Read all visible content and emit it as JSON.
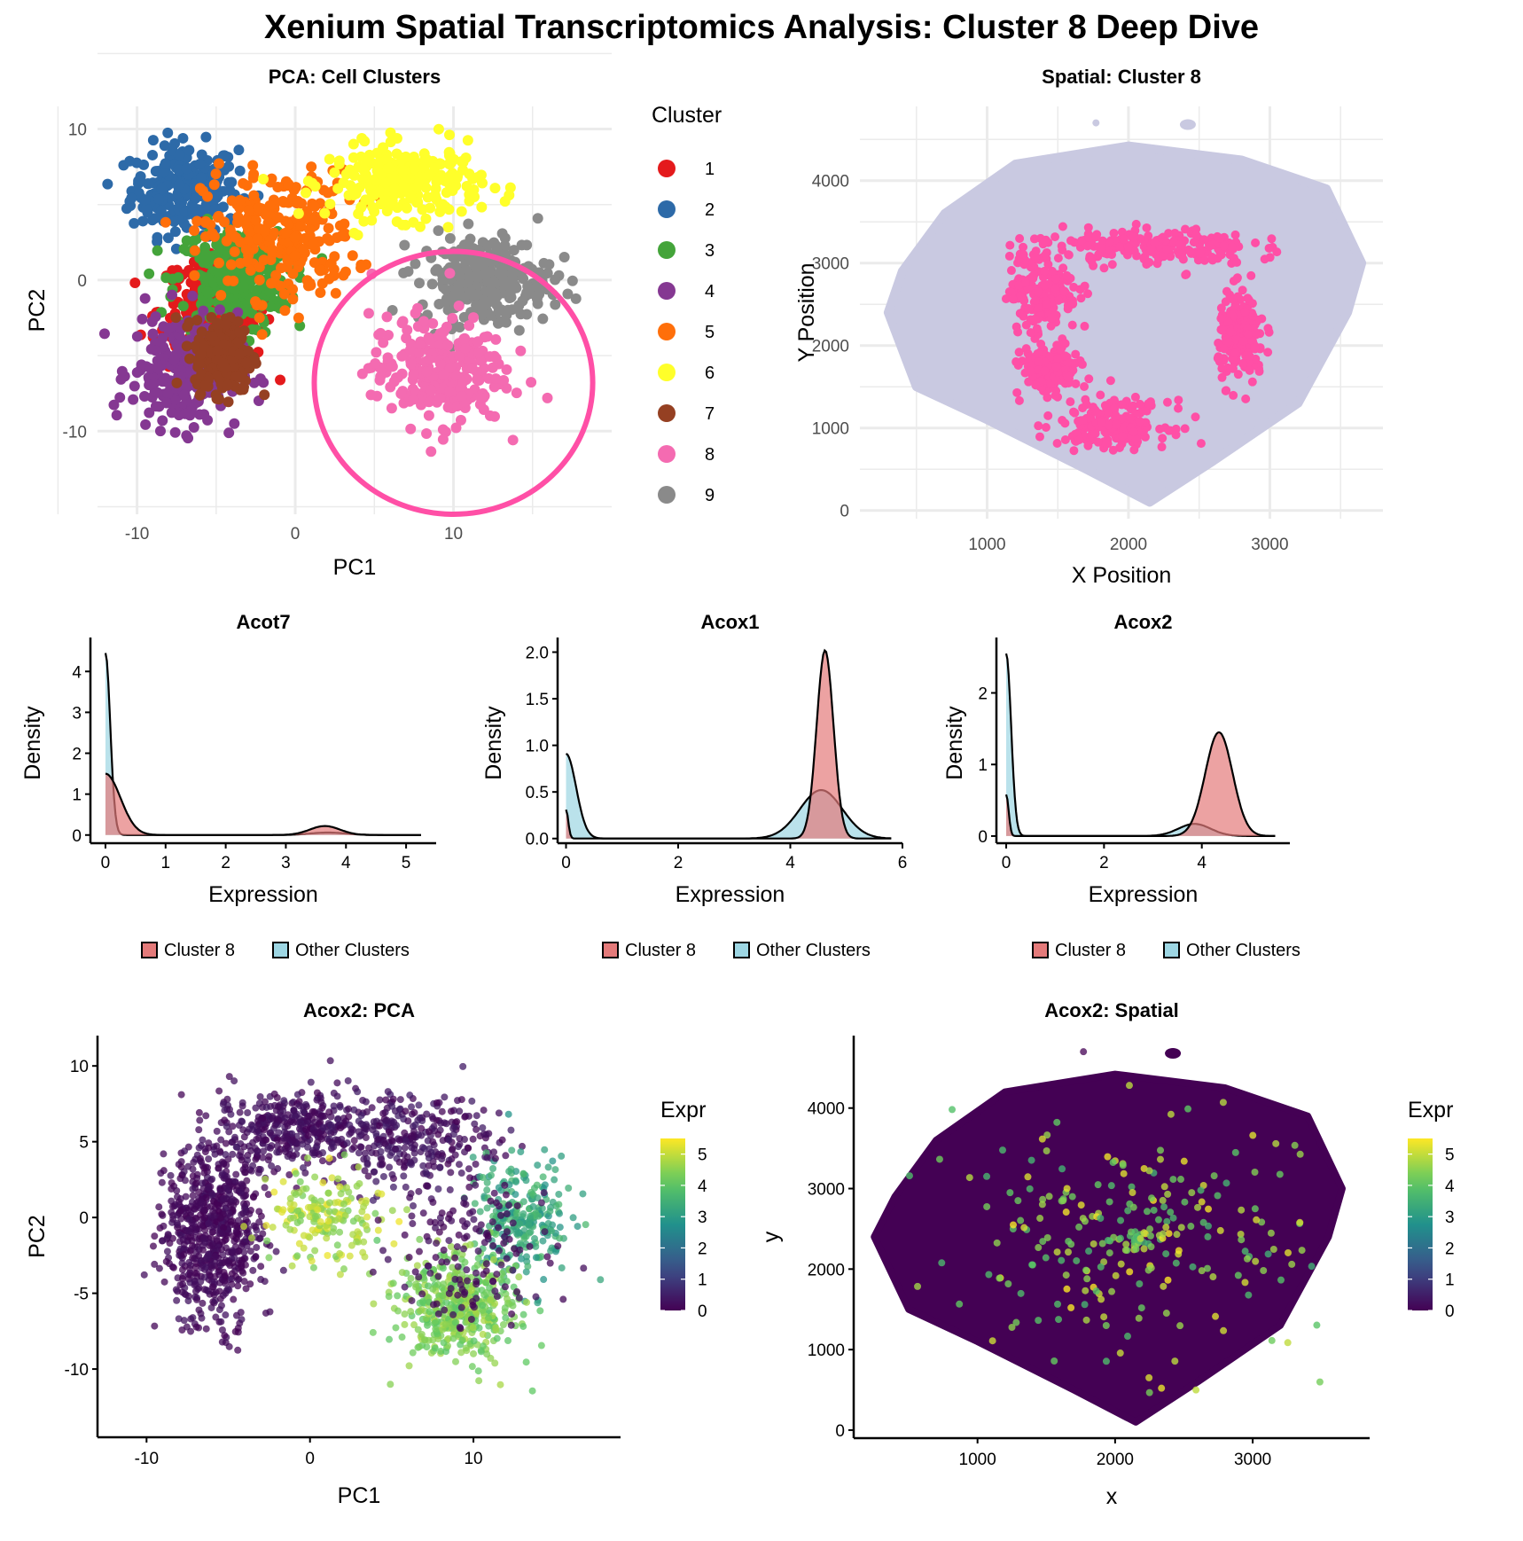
{
  "title": "Xenium Spatial Transcriptomics Analysis: Cluster 8 Deep Dive",
  "chart_data": [
    {
      "id": "pca-clusters",
      "type": "scatter",
      "title": "PCA: Cell Clusters",
      "xlabel": "PC1",
      "ylabel": "PC2",
      "xlim": [
        -12.5,
        20
      ],
      "ylim": [
        -15.5,
        11.5
      ],
      "xticks": [
        -10,
        0,
        10
      ],
      "yticks": [
        -10,
        0,
        10
      ],
      "grid": true,
      "legend": {
        "title": "Cluster",
        "position": "right",
        "entries": [
          {
            "label": "1",
            "color": "#e41a1c"
          },
          {
            "label": "2",
            "color": "#2d6aa8"
          },
          {
            "label": "3",
            "color": "#44a43a"
          },
          {
            "label": "4",
            "color": "#853892"
          },
          {
            "label": "5",
            "color": "#ff6f0a"
          },
          {
            "label": "6",
            "color": "#ffff2a"
          },
          {
            "label": "7",
            "color": "#954022"
          },
          {
            "label": "8",
            "color": "#f46bb1"
          },
          {
            "label": "9",
            "color": "#8a8a8a"
          }
        ]
      },
      "clusters": [
        {
          "label": "2",
          "center": [
            -7,
            6
          ],
          "spread": [
            2.8,
            2.5
          ]
        },
        {
          "label": "1",
          "center": [
            -5,
            -2
          ],
          "spread": [
            3,
            3
          ]
        },
        {
          "label": "3",
          "center": [
            -4,
            0
          ],
          "spread": [
            3,
            3
          ]
        },
        {
          "label": "5",
          "center": [
            -1,
            3
          ],
          "spread": [
            4,
            3.5
          ]
        },
        {
          "label": "6",
          "center": [
            7,
            6.5
          ],
          "spread": [
            4,
            2
          ]
        },
        {
          "label": "4",
          "center": [
            -7,
            -6
          ],
          "spread": [
            2.8,
            3.2
          ]
        },
        {
          "label": "7",
          "center": [
            -4.5,
            -5
          ],
          "spread": [
            1.5,
            2
          ]
        },
        {
          "label": "9",
          "center": [
            12,
            0
          ],
          "spread": [
            3.5,
            2.5
          ]
        },
        {
          "label": "8",
          "center": [
            9,
            -6
          ],
          "spread": [
            3.5,
            3
          ]
        }
      ],
      "annotation": {
        "type": "ellipse",
        "center": [
          10,
          -6.8
        ],
        "radii": [
          8.8,
          8.7
        ],
        "color": "#ff4fa6"
      }
    },
    {
      "id": "spatial-cluster8",
      "type": "scatter",
      "title": "Spatial: Cluster 8",
      "xlabel": "X Position",
      "ylabel": "Y Position",
      "xlim": [
        100,
        3800
      ],
      "ylim": [
        -100,
        4900
      ],
      "xticks": [
        1000,
        2000,
        3000
      ],
      "yticks": [
        0,
        1000,
        2000,
        3000,
        4000
      ],
      "grid": true,
      "background_color": "#c9c9e1",
      "highlight_color": "#ff4fa6",
      "highlight_regions": [
        {
          "center": [
            1400,
            2700
          ],
          "spread": [
            220,
            500
          ]
        },
        {
          "center": [
            2200,
            3200
          ],
          "spread": [
            600,
            200
          ]
        },
        {
          "center": [
            2800,
            2100
          ],
          "spread": [
            150,
            500
          ]
        },
        {
          "center": [
            1900,
            1050
          ],
          "spread": [
            350,
            250
          ]
        },
        {
          "center": [
            1450,
            1700
          ],
          "spread": [
            180,
            250
          ]
        }
      ]
    },
    {
      "id": "density-acot7",
      "type": "area",
      "title": "Acot7",
      "xlabel": "Expression",
      "ylabel": "Density",
      "xlim": [
        -0.25,
        5.5
      ],
      "ylim": [
        -0.2,
        4.7
      ],
      "xticks": [
        0,
        1,
        2,
        3,
        4,
        5
      ],
      "yticks": [
        0,
        1,
        2,
        3,
        4
      ],
      "xmax": 5.25,
      "legend": {
        "position": "bottom",
        "entries": [
          "Cluster 8",
          "Other Clusters"
        ]
      },
      "series": [
        {
          "name": "Cluster 8",
          "color": "#e47a7a",
          "components": [
            [
              0.0,
              0.25,
              1.5
            ],
            [
              3.65,
              0.25,
              0.22
            ]
          ]
        },
        {
          "name": "Other Clusters",
          "color": "#9dd6e3",
          "components": [
            [
              0.0,
              0.08,
              4.45
            ],
            [
              3.7,
              0.3,
              0.06
            ]
          ]
        }
      ]
    },
    {
      "id": "density-acox1",
      "type": "area",
      "title": "Acox1",
      "xlabel": "Expression",
      "ylabel": "Density",
      "xlim": [
        -0.15,
        6.0
      ],
      "ylim": [
        -0.05,
        2.1
      ],
      "xticks": [
        0,
        2,
        4,
        6
      ],
      "yticks": [
        "0.0",
        "0.5",
        "1.0",
        "1.5",
        "2.0"
      ],
      "xmax": 5.8,
      "legend": {
        "position": "bottom",
        "entries": [
          "Cluster 8",
          "Other Clusters"
        ]
      },
      "series": [
        {
          "name": "Cluster 8",
          "color": "#e47a7a",
          "components": [
            [
              0.0,
              0.04,
              0.31
            ],
            [
              4.62,
              0.15,
              2.02
            ]
          ]
        },
        {
          "name": "Other Clusters",
          "color": "#9dd6e3",
          "components": [
            [
              0.0,
              0.18,
              0.91
            ],
            [
              4.55,
              0.38,
              0.52
            ]
          ]
        }
      ]
    },
    {
      "id": "density-acox2",
      "type": "area",
      "title": "Acox2",
      "xlabel": "Expression",
      "ylabel": "Density",
      "xlim": [
        -0.2,
        5.8
      ],
      "ylim": [
        -0.1,
        2.7
      ],
      "xticks": [
        0,
        2,
        4
      ],
      "yticks": [
        0,
        1,
        2
      ],
      "xmax": 5.5,
      "legend": {
        "position": "bottom",
        "entries": [
          "Cluster 8",
          "Other Clusters"
        ]
      },
      "series": [
        {
          "name": "Cluster 8",
          "color": "#e47a7a",
          "components": [
            [
              0.0,
              0.05,
              0.58
            ],
            [
              4.35,
              0.28,
              1.45
            ]
          ]
        },
        {
          "name": "Other Clusters",
          "color": "#9dd6e3",
          "components": [
            [
              0.0,
              0.1,
              2.55
            ],
            [
              3.85,
              0.33,
              0.17
            ]
          ]
        }
      ]
    },
    {
      "id": "acox2-pca",
      "type": "scatter",
      "title": "Acox2: PCA",
      "xlabel": "PC1",
      "ylabel": "PC2",
      "xlim": [
        -13,
        19
      ],
      "ylim": [
        -14.5,
        12
      ],
      "xticks": [
        -10,
        0,
        10
      ],
      "yticks": [
        -10,
        -5,
        0,
        5,
        10
      ],
      "grid": false,
      "colorbar": {
        "title": "Expr",
        "min": 0,
        "max": 5.5,
        "ticks": [
          0,
          1,
          2,
          3,
          4,
          5
        ],
        "palette": "viridis"
      }
    },
    {
      "id": "acox2-spatial",
      "type": "scatter",
      "title": "Acox2: Spatial",
      "xlabel": "x",
      "ylabel": "y",
      "xlim": [
        100,
        3850
      ],
      "ylim": [
        -100,
        4900
      ],
      "xticks": [
        1000,
        2000,
        3000
      ],
      "yticks": [
        0,
        1000,
        2000,
        3000,
        4000
      ],
      "grid": false,
      "colorbar": {
        "title": "Expr",
        "min": 0,
        "max": 5.5,
        "ticks": [
          0,
          1,
          2,
          3,
          4,
          5
        ],
        "palette": "viridis"
      }
    }
  ]
}
